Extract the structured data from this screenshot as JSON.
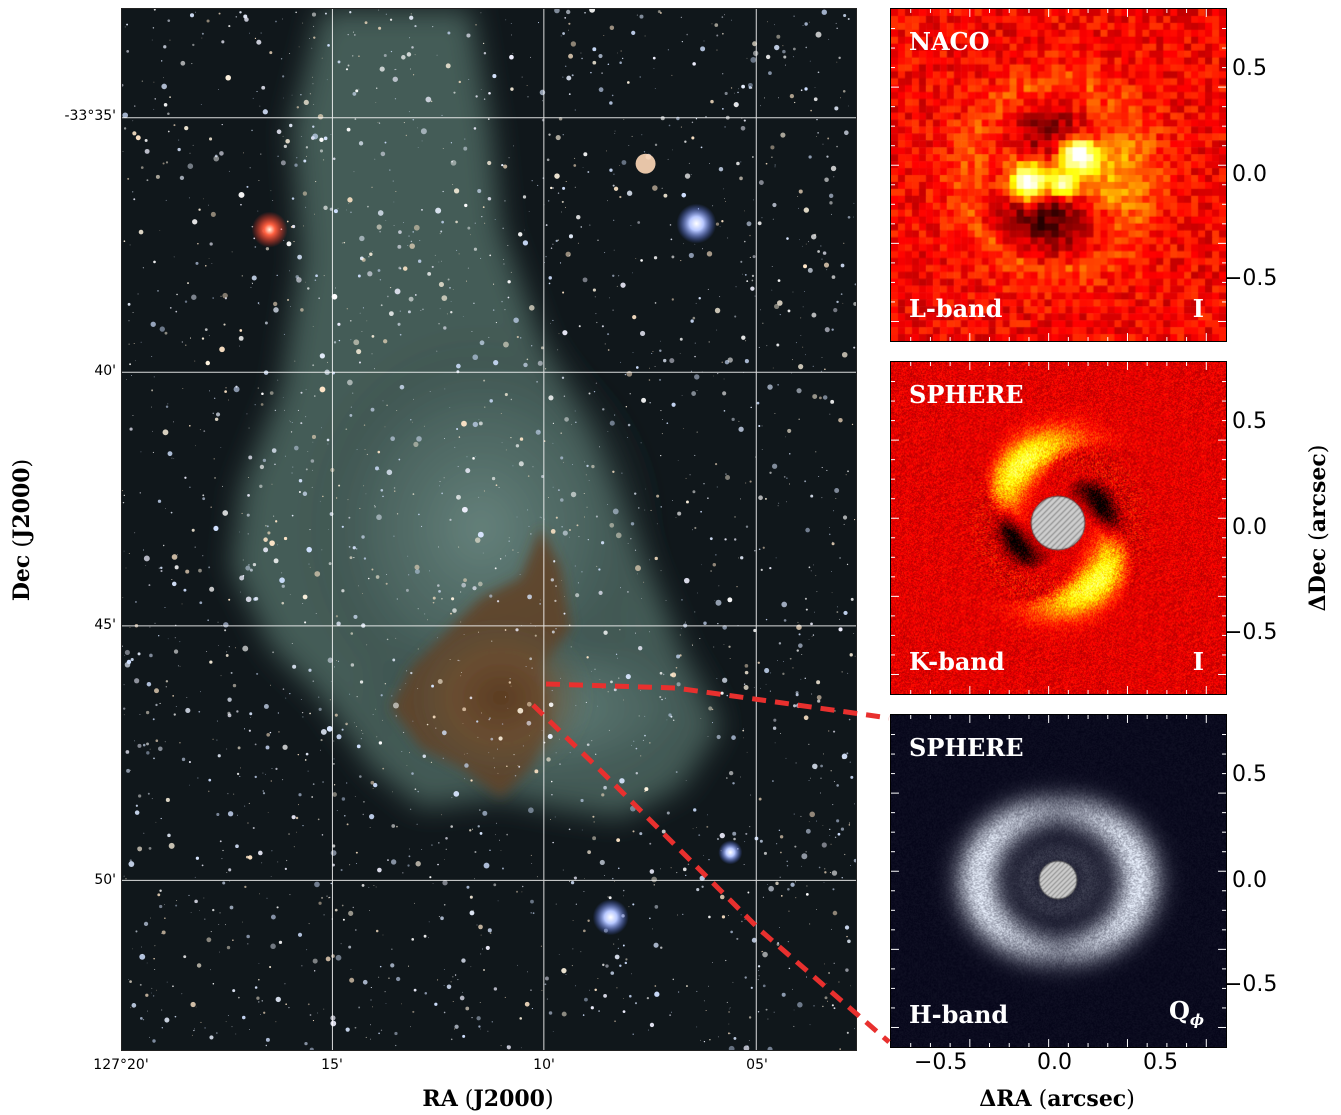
{
  "figure": {
    "axes": {
      "dec_ticks": [
        "-33°35'",
        "40'",
        "45'",
        "50'"
      ],
      "ra_ticks": [
        "127°20'",
        "15'",
        "10'",
        "05'"
      ],
      "dec_label_main": "Dec",
      "dec_label_suffix": "J2000",
      "ra_label_main": "RA",
      "ra_label_suffix": "J2000"
    },
    "panels": [
      {
        "instrument": "NACO",
        "band": "L-band",
        "stokes": "I",
        "colormap": "red-hot"
      },
      {
        "instrument": "SPHERE",
        "band": "K-band",
        "stokes": "I",
        "colormap": "red-hot"
      },
      {
        "instrument": "SPHERE",
        "band": "H-band",
        "stokes": "Q",
        "stokes_sub": "ϕ",
        "colormap": "blue-white"
      }
    ],
    "inset_axes": {
      "y_ticks": [
        "0.5",
        "0.0",
        "−0.5"
      ],
      "x_ticks": [
        "−0.5",
        "0.0",
        "0.5"
      ],
      "ylabel_main": "ΔDec",
      "ylabel_unit": "arcsec",
      "xlabel_main": "ΔRA",
      "xlabel_unit": "arcsec"
    },
    "colors": {
      "connector": "#e8302e",
      "grid": "#ffffff",
      "nebula": "#5c7a74",
      "dark_cloud": "#6a4a2c"
    }
  }
}
